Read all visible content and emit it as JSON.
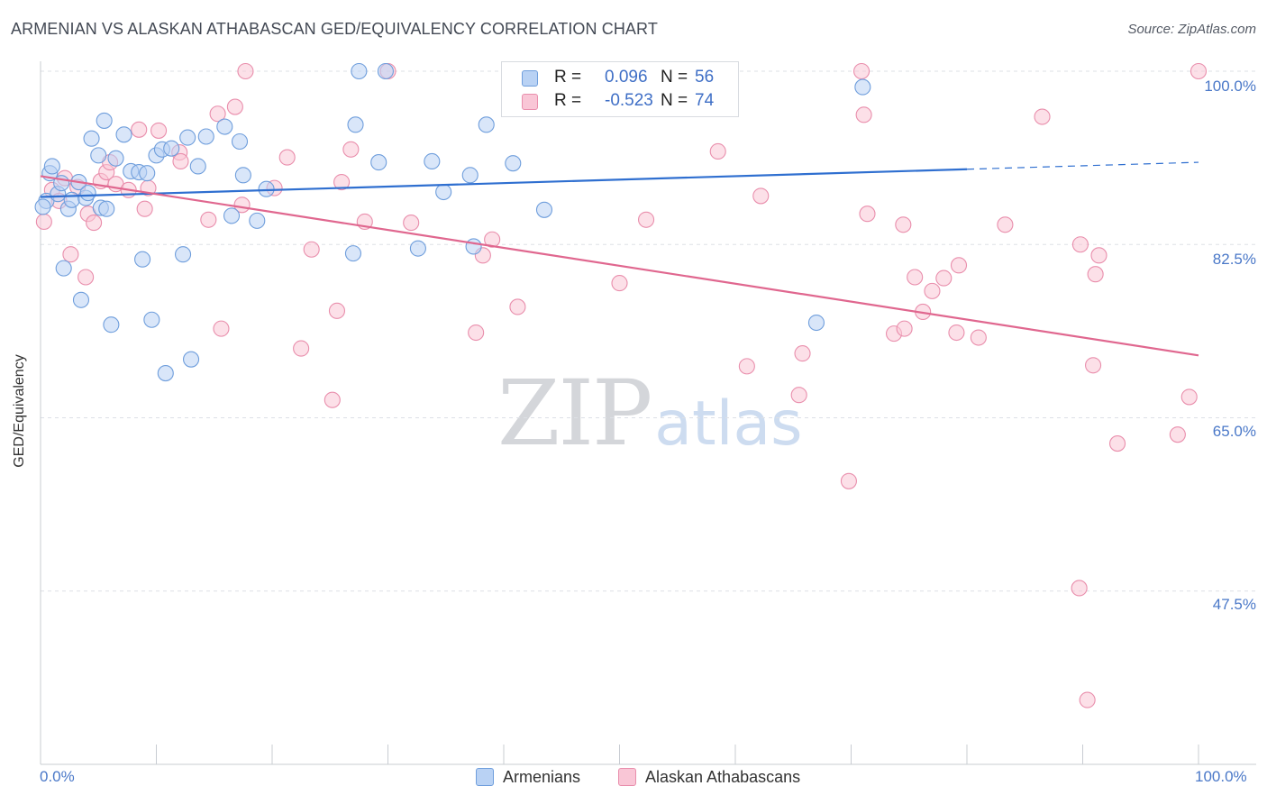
{
  "header": {
    "title": "ARMENIAN VS ALASKAN ATHABASCAN GED/EQUIVALENCY CORRELATION CHART",
    "source": "Source: ZipAtlas.com"
  },
  "watermark": {
    "zip": "ZIP",
    "atlas": "atlas"
  },
  "colors": {
    "armenians_fill": "#b9d2f4",
    "armenians_stroke": "#6f9edc",
    "armenians_line": "#2f6fd0",
    "athabascans_fill": "#f9c6d6",
    "athabascans_stroke": "#e98eac",
    "athabascans_line": "#e0678f",
    "tick_label": "#4a78c8",
    "grid": "#dde0e6"
  },
  "legend": {
    "rows": [
      {
        "r_label": "R =",
        "r_value": "0.096",
        "n_label": "N =",
        "n_value": "56"
      },
      {
        "r_label": "R =",
        "r_value": "-0.523",
        "n_label": "N =",
        "n_value": "74"
      }
    ],
    "bottom": [
      "Armenians",
      "Alaskan Athabascans"
    ]
  },
  "chart_data": {
    "type": "scatter",
    "title": "ARMENIAN VS ALASKAN ATHABASCAN GED/EQUIVALENCY CORRELATION CHART",
    "xlabel": "",
    "ylabel": "GED/Equivalency",
    "xlim": [
      0,
      100
    ],
    "ylim": [
      30,
      100
    ],
    "x_tick_labels": [
      "0.0%",
      "100.0%"
    ],
    "y_ticks": [
      47.5,
      65.0,
      82.5,
      100.0
    ],
    "y_tick_labels": [
      "47.5%",
      "65.0%",
      "82.5%",
      "100.0%"
    ],
    "grid": true,
    "legend_placement": "top-center",
    "series": [
      {
        "name": "Armenians",
        "r": 0.096,
        "n": 56,
        "trend": {
          "x": [
            0,
            80
          ],
          "y": [
            87.3,
            90.1
          ],
          "dashed_x": [
            80,
            100
          ],
          "dashed_y": [
            90.1,
            90.8
          ]
        },
        "points": [
          [
            0.5,
            86.9
          ],
          [
            0.8,
            89.7
          ],
          [
            1.0,
            90.4
          ],
          [
            1.5,
            87.6
          ],
          [
            1.8,
            88.7
          ],
          [
            2.0,
            80.1
          ],
          [
            2.4,
            86.1
          ],
          [
            2.7,
            87.0
          ],
          [
            3.3,
            88.8
          ],
          [
            3.5,
            76.9
          ],
          [
            3.9,
            87.2
          ],
          [
            4.1,
            87.7
          ],
          [
            4.4,
            93.2
          ],
          [
            5.0,
            91.5
          ],
          [
            5.2,
            86.2
          ],
          [
            5.5,
            95.0
          ],
          [
            5.7,
            86.1
          ],
          [
            6.1,
            74.4
          ],
          [
            6.5,
            91.2
          ],
          [
            7.2,
            93.6
          ],
          [
            7.8,
            89.9
          ],
          [
            8.5,
            89.8
          ],
          [
            8.8,
            81.0
          ],
          [
            9.2,
            89.7
          ],
          [
            9.6,
            74.9
          ],
          [
            10.0,
            91.5
          ],
          [
            10.5,
            92.1
          ],
          [
            10.8,
            69.5
          ],
          [
            11.3,
            92.2
          ],
          [
            12.3,
            81.5
          ],
          [
            12.7,
            93.3
          ],
          [
            13.0,
            70.9
          ],
          [
            13.6,
            90.4
          ],
          [
            14.3,
            93.4
          ],
          [
            15.9,
            94.4
          ],
          [
            16.5,
            85.4
          ],
          [
            17.2,
            92.9
          ],
          [
            17.5,
            89.5
          ],
          [
            18.7,
            84.9
          ],
          [
            19.5,
            88.1
          ],
          [
            27.0,
            81.6
          ],
          [
            27.2,
            94.6
          ],
          [
            27.5,
            100.0
          ],
          [
            29.2,
            90.8
          ],
          [
            29.8,
            100.0
          ],
          [
            32.6,
            82.1
          ],
          [
            33.8,
            90.9
          ],
          [
            34.8,
            87.8
          ],
          [
            37.1,
            89.5
          ],
          [
            37.4,
            82.3
          ],
          [
            38.5,
            94.6
          ],
          [
            40.8,
            90.7
          ],
          [
            43.5,
            86.0
          ],
          [
            67.0,
            74.6
          ],
          [
            71.0,
            98.4
          ],
          [
            0.2,
            86.3
          ]
        ]
      },
      {
        "name": "Alaskan Athabascans",
        "r": -0.523,
        "n": 74,
        "trend": {
          "x": [
            0,
            100
          ],
          "y": [
            89.4,
            71.3
          ]
        },
        "points": [
          [
            0.3,
            84.8
          ],
          [
            1.0,
            88.0
          ],
          [
            1.6,
            86.9
          ],
          [
            2.1,
            89.2
          ],
          [
            2.6,
            81.5
          ],
          [
            3.2,
            88.3
          ],
          [
            3.9,
            79.2
          ],
          [
            4.1,
            85.6
          ],
          [
            4.6,
            84.7
          ],
          [
            5.2,
            88.9
          ],
          [
            5.7,
            89.8
          ],
          [
            6.0,
            90.8
          ],
          [
            6.5,
            88.6
          ],
          [
            7.6,
            88.0
          ],
          [
            8.5,
            94.1
          ],
          [
            9.0,
            86.1
          ],
          [
            9.3,
            88.2
          ],
          [
            10.2,
            94.0
          ],
          [
            12.0,
            91.8
          ],
          [
            12.1,
            90.9
          ],
          [
            14.5,
            85.0
          ],
          [
            15.3,
            95.7
          ],
          [
            15.6,
            74.0
          ],
          [
            16.8,
            96.4
          ],
          [
            17.4,
            86.5
          ],
          [
            17.7,
            100.0
          ],
          [
            20.2,
            88.2
          ],
          [
            21.3,
            91.3
          ],
          [
            22.5,
            72.0
          ],
          [
            23.4,
            82.0
          ],
          [
            25.2,
            66.8
          ],
          [
            25.6,
            75.8
          ],
          [
            26.0,
            88.8
          ],
          [
            26.8,
            92.1
          ],
          [
            28.0,
            84.8
          ],
          [
            30.0,
            100.0
          ],
          [
            32.0,
            84.7
          ],
          [
            37.6,
            73.6
          ],
          [
            38.2,
            81.4
          ],
          [
            39.0,
            83.0
          ],
          [
            41.2,
            76.2
          ],
          [
            50.0,
            78.6
          ],
          [
            52.3,
            85.0
          ],
          [
            58.5,
            91.9
          ],
          [
            61.0,
            70.2
          ],
          [
            62.2,
            87.4
          ],
          [
            65.5,
            67.3
          ],
          [
            65.8,
            71.5
          ],
          [
            69.8,
            58.6
          ],
          [
            70.9,
            100.0
          ],
          [
            71.1,
            95.6
          ],
          [
            71.4,
            85.6
          ],
          [
            73.7,
            73.5
          ],
          [
            74.5,
            84.5
          ],
          [
            74.6,
            74.0
          ],
          [
            75.5,
            79.2
          ],
          [
            76.2,
            75.7
          ],
          [
            77.0,
            77.8
          ],
          [
            78.0,
            79.1
          ],
          [
            79.1,
            73.6
          ],
          [
            79.3,
            80.4
          ],
          [
            81.0,
            73.1
          ],
          [
            83.3,
            84.5
          ],
          [
            86.5,
            95.4
          ],
          [
            89.7,
            47.8
          ],
          [
            89.8,
            82.5
          ],
          [
            90.4,
            36.5
          ],
          [
            90.9,
            70.3
          ],
          [
            91.1,
            79.5
          ],
          [
            91.4,
            81.4
          ],
          [
            93.0,
            62.4
          ],
          [
            98.2,
            63.3
          ],
          [
            99.2,
            67.1
          ],
          [
            100.0,
            100.0
          ]
        ]
      }
    ]
  }
}
